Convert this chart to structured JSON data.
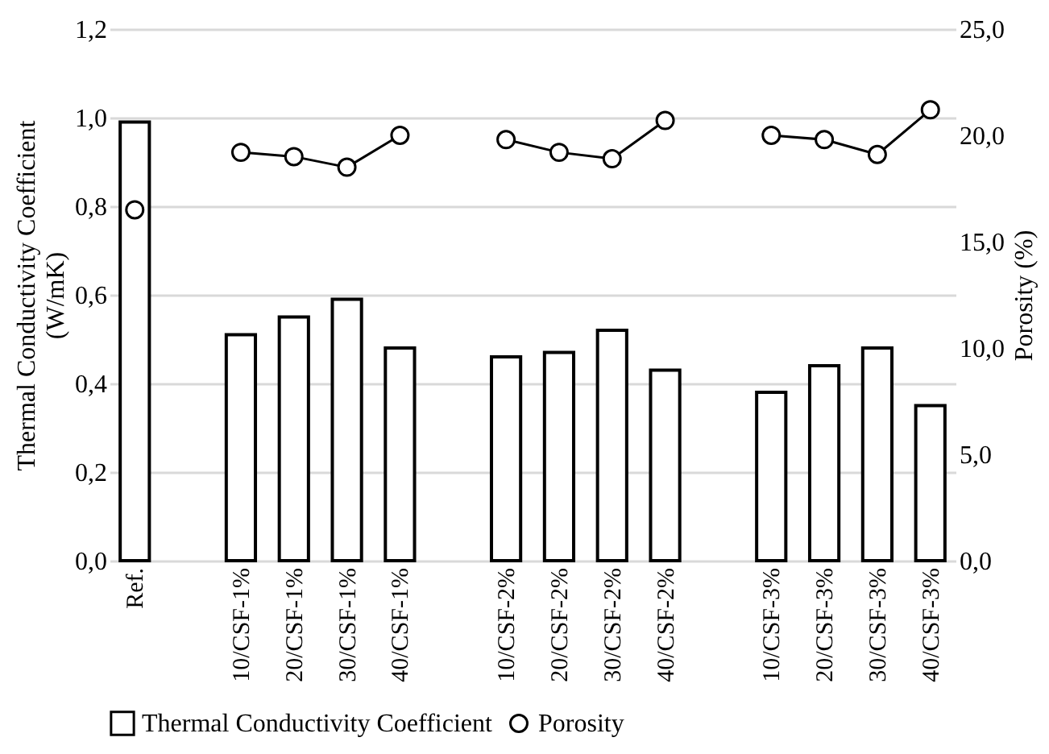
{
  "chart_data": {
    "type": "bar",
    "categories": [
      "Ref.",
      null,
      "10/CSF-1%",
      "20/CSF-1%",
      "30/CSF-1%",
      "40/CSF-1%",
      null,
      "10/CSF-2%",
      "20/CSF-2%",
      "30/CSF-2%",
      "40/CSF-2%",
      null,
      "10/CSF-3%",
      "20/CSF-3%",
      "30/CSF-3%",
      "40/CSF-3%"
    ],
    "series": [
      {
        "name": "Thermal Conductivity Coefficient",
        "color": "#ffffff",
        "values": [
          0.99,
          null,
          0.51,
          0.55,
          0.59,
          0.48,
          null,
          0.46,
          0.47,
          0.52,
          0.43,
          null,
          0.38,
          0.44,
          0.48,
          0.35
        ]
      },
      {
        "name": "Porosity",
        "type": "line",
        "axis": "y2",
        "color": "#000000",
        "marker": "circle",
        "values": [
          16.5,
          null,
          19.2,
          19.0,
          18.5,
          20.0,
          null,
          19.8,
          19.2,
          18.9,
          20.7,
          null,
          20.0,
          19.8,
          19.1,
          21.2
        ]
      }
    ],
    "ylabel": "Thermal Conductivity Coefficient (W/mK)",
    "y2label": "Porosity (%)",
    "ylim": [
      0,
      1.2
    ],
    "yticks": [
      {
        "value": 0,
        "label": "0,0"
      },
      {
        "value": 0.2,
        "label": "0,2"
      },
      {
        "value": 0.4,
        "label": "0,4"
      },
      {
        "value": 0.6,
        "label": "0,6"
      },
      {
        "value": 0.8,
        "label": "0,8"
      },
      {
        "value": 1.0,
        "label": "1,0"
      },
      {
        "value": 1.2,
        "label": "1,2"
      }
    ],
    "y2lim": [
      0,
      25
    ],
    "y2ticks": [
      {
        "value": 0,
        "label": "0,0"
      },
      {
        "value": 5,
        "label": "5,0"
      },
      {
        "value": 10,
        "label": "10,0"
      },
      {
        "value": 15,
        "label": "15,0"
      },
      {
        "value": 20,
        "label": "20,0"
      },
      {
        "value": 25,
        "label": "25,0"
      }
    ],
    "grid": "y",
    "legend": "bottom"
  }
}
